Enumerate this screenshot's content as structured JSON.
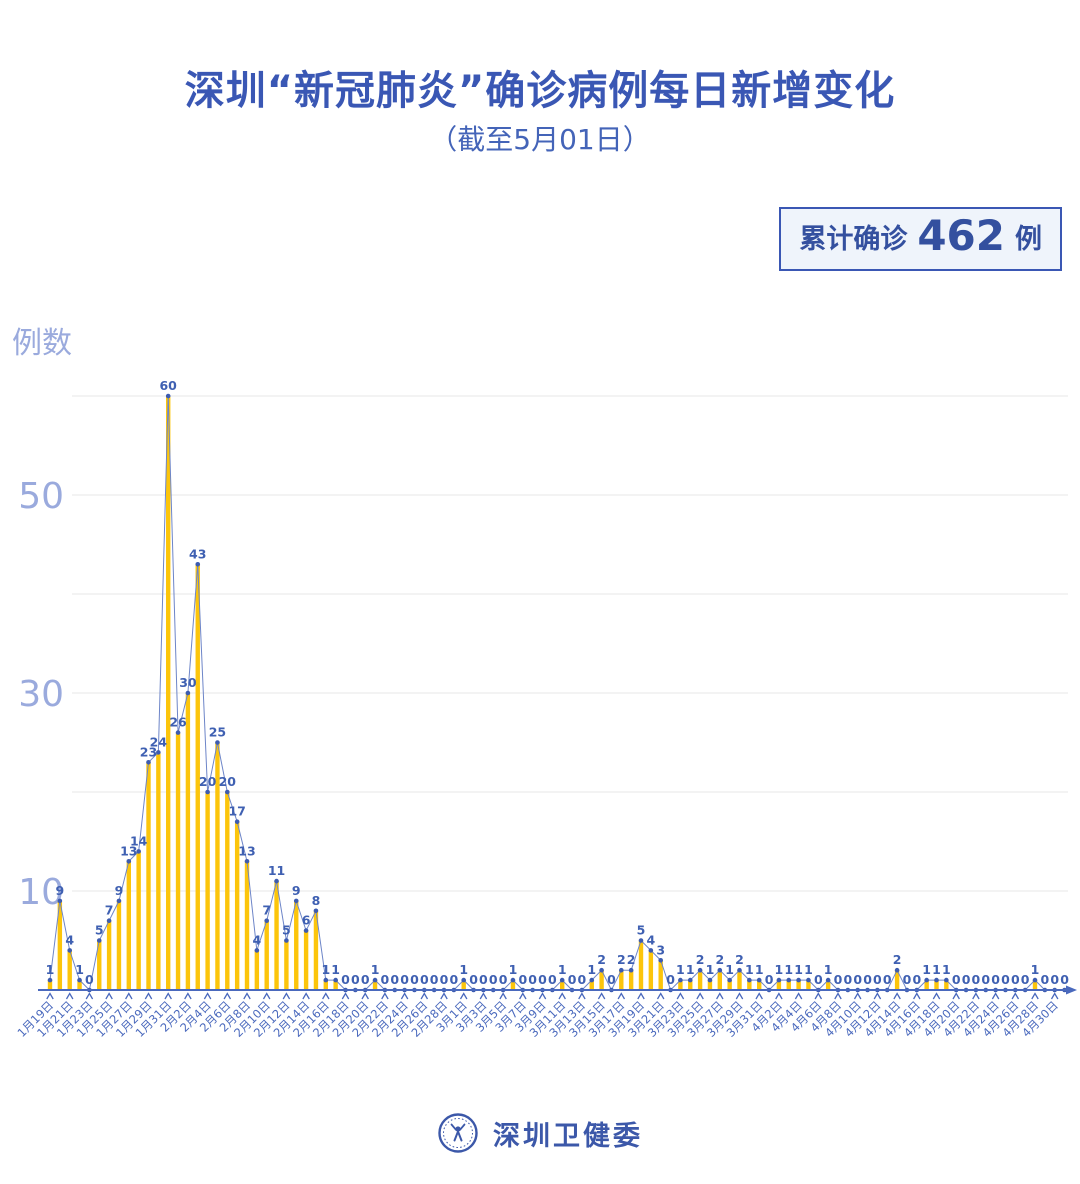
{
  "page": {
    "title": "深圳“新冠肺炎”确诊病例每日新增变化",
    "subtitle": "（截至5月01日）",
    "badge": {
      "prefix": "累计确诊",
      "value": "462",
      "suffix": "例"
    },
    "footer": {
      "org": "深圳卫健委",
      "logo": "shenzhen-health-commission-emblem"
    }
  },
  "chart_data": {
    "type": "bar",
    "title": "深圳“新冠肺炎”确诊病例每日新增变化",
    "subtitle": "（截至5月01日）",
    "total_label": "累计确诊 462 例",
    "total": 462,
    "ylabel": "例数",
    "xlabel": "",
    "ylim": [
      0,
      62
    ],
    "yticks": [
      10,
      30,
      50
    ],
    "gridlines": [
      10,
      20,
      30,
      40,
      50,
      60
    ],
    "grid": true,
    "legend_position": "none",
    "x_label_every": 2,
    "categories": [
      "1月19日",
      "1月20日",
      "1月21日",
      "1月22日",
      "1月23日",
      "1月24日",
      "1月25日",
      "1月26日",
      "1月27日",
      "1月28日",
      "1月29日",
      "1月30日",
      "1月31日",
      "2月1日",
      "2月2日",
      "2月3日",
      "2月4日",
      "2月5日",
      "2月6日",
      "2月7日",
      "2月8日",
      "2月9日",
      "2月10日",
      "2月11日",
      "2月12日",
      "2月13日",
      "2月14日",
      "2月15日",
      "2月16日",
      "2月17日",
      "2月18日",
      "2月19日",
      "2月20日",
      "2月21日",
      "2月22日",
      "2月23日",
      "2月24日",
      "2月25日",
      "2月26日",
      "2月27日",
      "2月28日",
      "2月29日",
      "3月1日",
      "3月2日",
      "3月3日",
      "3月4日",
      "3月5日",
      "3月6日",
      "3月7日",
      "3月8日",
      "3月9日",
      "3月10日",
      "3月11日",
      "3月12日",
      "3月13日",
      "3月14日",
      "3月15日",
      "3月16日",
      "3月17日",
      "3月18日",
      "3月19日",
      "3月20日",
      "3月21日",
      "3月22日",
      "3月23日",
      "3月24日",
      "3月25日",
      "3月26日",
      "3月27日",
      "3月28日",
      "3月29日",
      "3月30日",
      "3月31日",
      "4月1日",
      "4月2日",
      "4月3日",
      "4月4日",
      "4月5日",
      "4月6日",
      "4月7日",
      "4月8日",
      "4月9日",
      "4月10日",
      "4月11日",
      "4月12日",
      "4月13日",
      "4月14日",
      "4月15日",
      "4月16日",
      "4月17日",
      "4月18日",
      "4月19日",
      "4月20日",
      "4月21日",
      "4月22日",
      "4月23日",
      "4月24日",
      "4月25日",
      "4月26日",
      "4月27日",
      "4月28日",
      "4月29日",
      "4月30日",
      "5月1日"
    ],
    "values": [
      1,
      9,
      4,
      1,
      0,
      5,
      7,
      9,
      13,
      14,
      23,
      24,
      60,
      26,
      30,
      43,
      20,
      25,
      20,
      17,
      13,
      4,
      7,
      11,
      5,
      9,
      6,
      8,
      1,
      1,
      0,
      0,
      0,
      1,
      0,
      0,
      0,
      0,
      0,
      0,
      0,
      0,
      1,
      0,
      0,
      0,
      0,
      1,
      0,
      0,
      0,
      0,
      1,
      0,
      0,
      1,
      2,
      0,
      2,
      2,
      5,
      4,
      3,
      0,
      1,
      1,
      2,
      1,
      2,
      1,
      2,
      1,
      1,
      0,
      1,
      1,
      1,
      1,
      0,
      1,
      0,
      0,
      0,
      0,
      0,
      0,
      2,
      0,
      0,
      1,
      1,
      1,
      0,
      0,
      0,
      0,
      0,
      0,
      0,
      0,
      1,
      0,
      0,
      0
    ],
    "colors": {
      "bar": "#fcc50b",
      "line": "#6d85c8",
      "dot": "#3d5cb0",
      "value_label": "#3f60b2",
      "axis": "#4a69bd",
      "x_tick_label": "#4a69bd",
      "grid": "#e7e7e7",
      "y_tick_label": "#9aaadd",
      "title": "#3a57b4"
    }
  }
}
